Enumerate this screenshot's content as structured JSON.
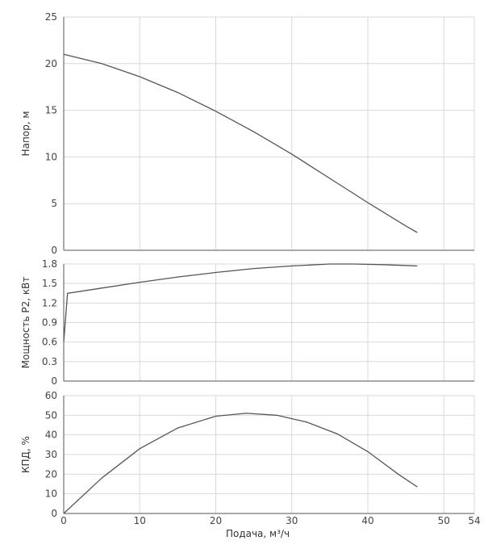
{
  "chart_data": [
    {
      "type": "line",
      "id": "head",
      "ylabel": "Напор, м",
      "ylim": [
        0,
        25
      ],
      "yticks": [
        0,
        5,
        10,
        15,
        20,
        25
      ],
      "xlim": [
        0,
        54
      ],
      "grid": true,
      "series": [
        {
          "x": [
            0,
            5,
            10,
            15,
            20,
            25,
            30,
            35,
            40,
            45,
            46.5
          ],
          "y": [
            21,
            20,
            18.6,
            16.9,
            14.9,
            12.7,
            10.3,
            7.7,
            5.1,
            2.6,
            1.9
          ]
        }
      ]
    },
    {
      "type": "line",
      "id": "power",
      "ylabel": "Мощность Р2, кВт",
      "ylim": [
        0,
        1.8
      ],
      "yticks": [
        "0",
        "0.3",
        "0.6",
        "0.9",
        "1.2",
        "1.5",
        "1.8"
      ],
      "xlim": [
        0,
        54
      ],
      "grid": true,
      "series": [
        {
          "x": [
            0,
            0.5,
            5,
            10,
            15,
            20,
            25,
            30,
            35,
            38,
            42,
            46.5
          ],
          "y": [
            0.6,
            1.35,
            1.43,
            1.52,
            1.6,
            1.67,
            1.73,
            1.77,
            1.8,
            1.8,
            1.79,
            1.77
          ]
        }
      ]
    },
    {
      "type": "line",
      "id": "efficiency",
      "ylabel": "КПД, %",
      "xlabel": "Подача, м³/ч",
      "ylim": [
        0,
        60
      ],
      "yticks": [
        0,
        10,
        20,
        30,
        40,
        50,
        60
      ],
      "xlim": [
        0,
        54
      ],
      "xticks": [
        0,
        10,
        20,
        30,
        40,
        50,
        54
      ],
      "grid": true,
      "series": [
        {
          "x": [
            0,
            5,
            10,
            15,
            20,
            24,
            28,
            32,
            36,
            40,
            44,
            46.5
          ],
          "y": [
            0,
            18,
            33,
            43.5,
            49.5,
            51,
            50,
            46.5,
            40.5,
            31.5,
            20,
            13.5
          ]
        }
      ]
    }
  ]
}
